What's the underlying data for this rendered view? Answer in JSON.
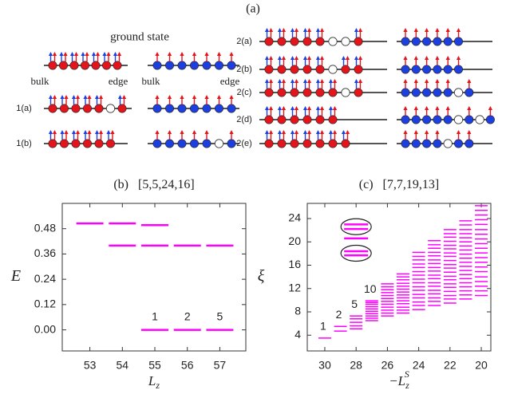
{
  "panel_a": {
    "label": "(a)",
    "ground_state": "ground state",
    "chain_ends": [
      "bulk",
      "edge",
      "bulk",
      "edge"
    ],
    "rows": [
      "1(a)",
      "1(b)",
      "2(a)",
      "2(b)",
      "2(c)",
      "2(d)",
      "2(e)"
    ]
  },
  "chart_data": [
    {
      "type": "level",
      "panel_label": "(b)",
      "title": "[5,5,24,16]",
      "xlabel": {
        "base": "L",
        "sub": "z"
      },
      "ylabel": "E",
      "x": [
        53,
        54,
        55,
        56,
        57
      ],
      "xticks": [
        53,
        54,
        55,
        56,
        57
      ],
      "xlim": [
        52.15,
        57.8
      ],
      "ylim": [
        -0.1,
        0.6
      ],
      "yticks": [
        {
          "value": 0,
          "label": "0.00"
        },
        {
          "value": 0.12,
          "label": "0.12"
        },
        {
          "value": 0.24,
          "label": "0.24"
        },
        {
          "value": 0.36,
          "label": "0.36"
        },
        {
          "value": 0.48,
          "label": "0.48"
        }
      ],
      "series": [
        {
          "color": "#ff00ff",
          "values": [
            0.505,
            0.505,
            0.497,
            null,
            null
          ]
        },
        {
          "color": "#ff00ff",
          "values": [
            null,
            0.4,
            0.4,
            0.4,
            0.4
          ]
        },
        {
          "color": "#ff00ff",
          "values": [
            null,
            null,
            0,
            0,
            0
          ],
          "labels": [
            null,
            null,
            "1",
            "2",
            "5"
          ]
        }
      ]
    },
    {
      "type": "spectrum",
      "panel_label": "(c)",
      "title": "[7,7,19,13]",
      "xlabel": {
        "base": "−L",
        "sub": "z",
        "sup": "S"
      },
      "ylabel": "ξ",
      "color": "#ff00ff",
      "x": [
        30,
        29,
        28,
        27,
        26,
        25,
        24,
        23,
        22,
        21,
        20
      ],
      "xticks": [
        30,
        28,
        26,
        24,
        22,
        20
      ],
      "xlim": [
        31.12,
        19.39
      ],
      "ylim": [
        1.3,
        26.6
      ],
      "yticks": [
        4,
        8,
        12,
        16,
        20,
        24
      ],
      "labels": [
        "1",
        "2",
        "5",
        "10",
        null,
        null,
        null,
        null,
        null,
        null,
        null
      ],
      "levels": [
        [
          3.5
        ],
        [
          4.7,
          5.5
        ],
        [
          5.1,
          5.6,
          6.2,
          6.8,
          7.3
        ],
        [
          6.5,
          6.9,
          7.3,
          7.7,
          8.1,
          8.5,
          8.9,
          9.3,
          9.6,
          9.9
        ],
        [
          7.3,
          7.8,
          8.3,
          8.8,
          9.3,
          9.8,
          10.3,
          10.8,
          11.3,
          11.8,
          12.3,
          12.8
        ],
        [
          7.8,
          8.3,
          8.8,
          9.4,
          9.9,
          10.4,
          10.9,
          11.4,
          11.9,
          12.4,
          12.9,
          13.5,
          14.0,
          14.5
        ],
        [
          8.4,
          9.1,
          9.7,
          10.4,
          11.0,
          11.7,
          12.3,
          13.0,
          13.6,
          14.3,
          14.9,
          15.6,
          16.2,
          16.9,
          17.5,
          18.2
        ],
        [
          9.1,
          9.8,
          10.4,
          11.1,
          11.7,
          12.4,
          13.0,
          13.7,
          14.3,
          15.0,
          15.6,
          16.3,
          16.9,
          17.6,
          18.2,
          18.9,
          19.5,
          20.2
        ],
        [
          9.5,
          10.2,
          10.8,
          11.5,
          12.2,
          12.8,
          13.5,
          14.1,
          14.8,
          15.5,
          16.1,
          16.8,
          17.5,
          18.1,
          18.8,
          19.4,
          20.1,
          20.8,
          21.4,
          22.1
        ],
        [
          10.2,
          10.9,
          11.6,
          12.3,
          13.0,
          13.7,
          14.4,
          15.1,
          15.8,
          16.5,
          17.2,
          17.9,
          18.6,
          19.3,
          20.0,
          20.7,
          21.4,
          22.1,
          22.9,
          23.6
        ],
        [
          10.8,
          11.6,
          12.4,
          13.2,
          14.0,
          14.9,
          15.7,
          16.5,
          17.3,
          18.1,
          18.9,
          19.7,
          20.5,
          21.3,
          22.1,
          23.0,
          23.8,
          24.6,
          25.4,
          26.2
        ]
      ],
      "inset": {
        "x": 28,
        "values": [
          23.0,
          22.2,
          20.6,
          18.4,
          17.7
        ]
      }
    }
  ]
}
